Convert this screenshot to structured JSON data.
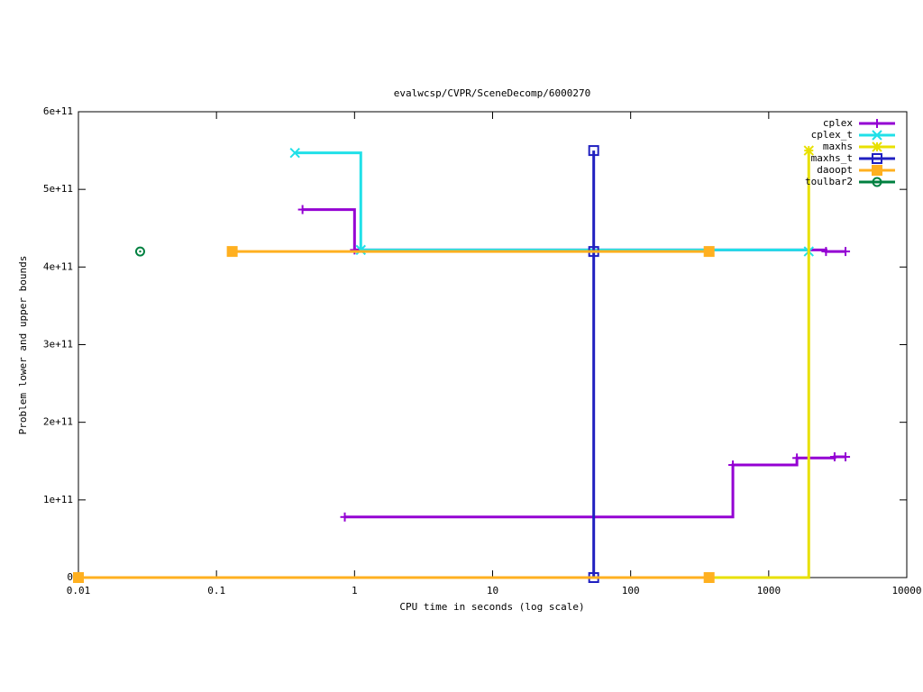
{
  "chart_data": {
    "type": "step",
    "title": "evalwcsp/CVPR/SceneDecomp/6000270",
    "x_label": "CPU time in seconds (log scale)",
    "y_label": "Problem lower and upper bounds",
    "x_log": true,
    "xlim": [
      0.01,
      10000
    ],
    "xticks": [
      0.01,
      0.1,
      1,
      10,
      100,
      1000,
      10000
    ],
    "ylim": [
      0,
      600000000000
    ],
    "yticks": [
      0,
      {
        "value": 100000000000,
        "label": "1e+11"
      },
      {
        "value": 200000000000,
        "label": "2e+11"
      },
      {
        "value": 300000000000,
        "label": "3e+11"
      },
      {
        "value": 400000000000,
        "label": "4e+11"
      },
      {
        "value": 500000000000,
        "label": "5e+11"
      },
      {
        "value": 600000000000,
        "label": "6e+11"
      }
    ],
    "legend": "top-right",
    "series": [
      {
        "name": "cplex",
        "color": "#9400d3",
        "marker": "plus",
        "x": [
          0.42,
          1.0,
          2600,
          3600,
          null,
          0.85,
          550,
          1600,
          3000,
          3600
        ],
        "values": [
          474000000000,
          422000000000,
          420000000000,
          420000000000,
          null,
          78000000000,
          145000000000,
          154000000000,
          155500000000,
          155500000000
        ]
      },
      {
        "name": "cplex_t",
        "color": "#20e0e8",
        "marker": "cross",
        "x": [
          0.37,
          1.11,
          1950
        ],
        "values": [
          547000000000,
          422000000000,
          420000000000
        ]
      },
      {
        "name": "maxhs",
        "color": "#e8e000",
        "marker": "star",
        "x": [
          0.01,
          1950
        ],
        "values": [
          0,
          550000000000
        ]
      },
      {
        "name": "maxhs_t",
        "color": "#2020c0",
        "marker": "square",
        "x": [
          54,
          54,
          54
        ],
        "values": [
          0,
          420000000000,
          550000000000
        ]
      },
      {
        "name": "daoopt",
        "color": "#ffb020",
        "marker": "filled-square",
        "x": [
          0.13,
          370,
          null,
          0.01,
          370
        ],
        "values": [
          420000000000,
          420000000000,
          null,
          0,
          0
        ]
      },
      {
        "name": "toulbar2",
        "color": "#008040",
        "marker": "circle",
        "x": [
          0.028
        ],
        "values": [
          420000000000
        ]
      }
    ]
  }
}
